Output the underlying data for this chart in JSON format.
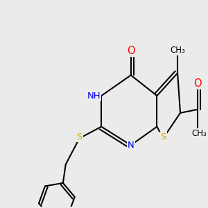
{
  "background_color": "#ebebeb",
  "atom_colors": {
    "O": "#ff0000",
    "N": "#0000ee",
    "S": "#ccaa00",
    "C": "#000000",
    "H": "#555555"
  },
  "bond_lw": 1.5,
  "font_size": 9.5,
  "figsize": [
    3.0,
    3.0
  ],
  "dpi": 100,
  "xlim": [
    0.0,
    3.0
  ],
  "ylim": [
    0.0,
    3.0
  ]
}
